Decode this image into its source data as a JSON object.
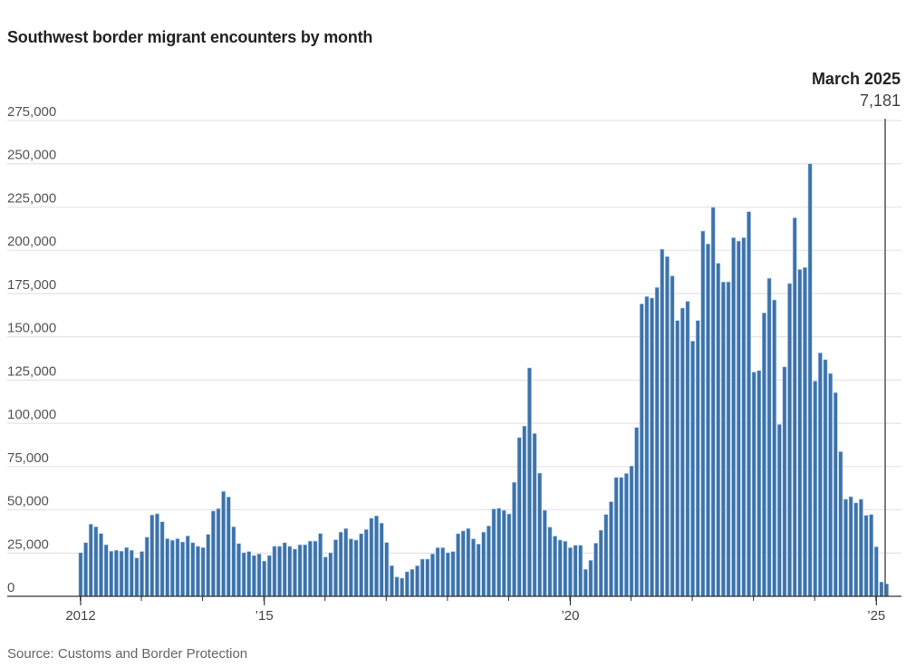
{
  "chart_data": {
    "type": "bar",
    "title": "Southwest border migrant encounters by month",
    "source": "Source: Customs and Border Protection",
    "xlabel": "",
    "ylabel": "",
    "start_month": "2012-01",
    "end_month": "2025-03",
    "ylim": [
      0,
      275000
    ],
    "yticks": [
      0,
      25000,
      50000,
      75000,
      100000,
      125000,
      150000,
      175000,
      200000,
      225000,
      250000,
      275000
    ],
    "ytick_labels": [
      "0",
      "25,000",
      "50,000",
      "75,000",
      "100,000",
      "125,000",
      "150,000",
      "175,000",
      "200,000",
      "225,000",
      "250,000",
      "275,000"
    ],
    "xticks": [
      {
        "month": "2012-01",
        "label": "2012"
      },
      {
        "month": "2015-01",
        "label": "’15"
      },
      {
        "month": "2020-01",
        "label": "’20"
      },
      {
        "month": "2025-01",
        "label": "’25"
      }
    ],
    "grid": true,
    "bar_color": "#3d72a8",
    "annotation": {
      "month": "2025-03",
      "label": "March 2025",
      "value_label": "7,181"
    },
    "values": [
      25200,
      31000,
      41700,
      40200,
      36300,
      29800,
      26100,
      26600,
      26100,
      28200,
      26600,
      22200,
      25900,
      34200,
      47000,
      47700,
      43100,
      33300,
      32400,
      33300,
      31400,
      34900,
      31000,
      28900,
      28200,
      35800,
      49300,
      50700,
      60600,
      57400,
      40200,
      30500,
      25200,
      25900,
      23600,
      24500,
      20400,
      23600,
      28900,
      28900,
      31000,
      28900,
      27300,
      29800,
      29800,
      31900,
      31900,
      36300,
      22700,
      25200,
      32700,
      37100,
      39200,
      33200,
      32500,
      36200,
      38600,
      45100,
      46500,
      42300,
      31100,
      17700,
      11200,
      10500,
      14200,
      15600,
      17700,
      21500,
      21500,
      24500,
      28100,
      28100,
      25200,
      25900,
      36200,
      37800,
      39200,
      33200,
      30200,
      37100,
      40700,
      50500,
      50900,
      49700,
      47600,
      65900,
      91800,
      98400,
      132000,
      94100,
      71200,
      49700,
      40000,
      34800,
      32500,
      31800,
      28100,
      29500,
      29500,
      15600,
      20800,
      30700,
      38200,
      47300,
      54700,
      68700,
      68700,
      71000,
      75300,
      97600,
      169000,
      173300,
      172400,
      178500,
      200600,
      196400,
      185200,
      159400,
      166600,
      170500,
      147500,
      159400,
      211100,
      203700,
      224800,
      192500,
      181700,
      181700,
      207300,
      205300,
      207300,
      222300,
      129600,
      130500,
      163800,
      183800,
      171300,
      99300,
      132600,
      180800,
      218800,
      188900,
      190100,
      250000,
      124400,
      140700,
      136800,
      128800,
      117700,
      83600,
      56100,
      57600,
      54000,
      56100,
      46800,
      47300,
      28600,
      8300,
      7181
    ]
  }
}
